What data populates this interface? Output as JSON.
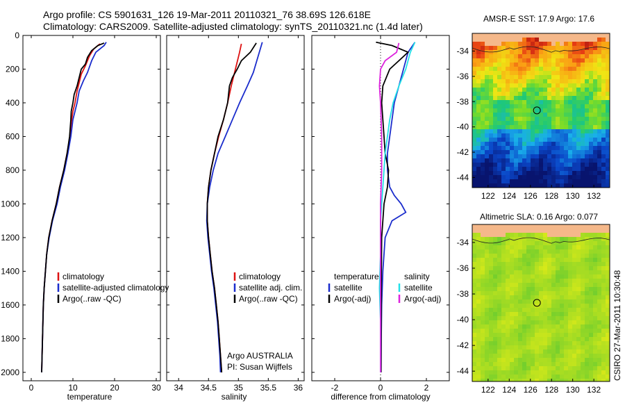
{
  "header": {
    "line1": "Argo profile: CS 5901631_126 19-Mar-2011 20110321_76 38.69S 126.618E",
    "line2": "Climatology: CARS2009. Satellite-adjusted climatology: synTS_20110321.nc (1.4d later)"
  },
  "credit": "CSIRO 27-Mar-2011 10:30:48",
  "colors": {
    "climatology": "#dd1111",
    "satellite": "#1a2ccc",
    "argo": "#000000",
    "sal_sat": "#22e0e8",
    "sal_argo": "#dd22dd",
    "land": "#f5b88a"
  },
  "chart_data": [
    {
      "type": "line",
      "id": "temperature",
      "xlabel": "temperature",
      "ylabel": "",
      "xlim": [
        -2,
        31
      ],
      "ylim": [
        2050,
        0
      ],
      "x_ticks": [
        0,
        10,
        20,
        30
      ],
      "y_ticks": [
        0,
        200,
        400,
        600,
        800,
        1000,
        1200,
        1400,
        1600,
        1800,
        2000
      ],
      "legend": [
        "climatology",
        "satellite-adjusted climatology",
        "Argo(..raw -QC)"
      ],
      "series": [
        {
          "name": "climatology",
          "color": "#dd1111",
          "points": [
            [
              16.5,
              50
            ],
            [
              15,
              80
            ],
            [
              14,
              120
            ],
            [
              13,
              180
            ],
            [
              12,
              230
            ],
            [
              11.5,
              280
            ],
            [
              11,
              330
            ],
            [
              10.5,
              400
            ],
            [
              10,
              450
            ],
            [
              9.7,
              500
            ],
            [
              9.3,
              600
            ],
            [
              8.6,
              700
            ],
            [
              7.8,
              800
            ],
            [
              6.8,
              900
            ],
            [
              6,
              1000
            ],
            [
              5,
              1100
            ],
            [
              4.2,
              1200
            ],
            [
              3.7,
              1300
            ],
            [
              3.4,
              1400
            ],
            [
              3.1,
              1500
            ],
            [
              2.9,
              1600
            ],
            [
              2.8,
              1700
            ],
            [
              2.7,
              1800
            ],
            [
              2.6,
              1900
            ],
            [
              2.5,
              2000
            ]
          ]
        },
        {
          "name": "satellite-adjusted climatology",
          "color": "#1a2ccc",
          "points": [
            [
              18,
              40
            ],
            [
              17.5,
              60
            ],
            [
              15.5,
              100
            ],
            [
              14.5,
              150
            ],
            [
              13.5,
              220
            ],
            [
              12.5,
              270
            ],
            [
              11.5,
              330
            ],
            [
              11,
              400
            ],
            [
              10.5,
              450
            ],
            [
              10,
              500
            ],
            [
              9.5,
              600
            ],
            [
              8.8,
              700
            ],
            [
              8,
              800
            ],
            [
              7,
              900
            ],
            [
              6.2,
              1000
            ],
            [
              5.1,
              1100
            ],
            [
              4.3,
              1200
            ],
            [
              3.7,
              1300
            ],
            [
              3.4,
              1400
            ],
            [
              3.1,
              1500
            ],
            [
              2.9,
              1600
            ],
            [
              2.8,
              1700
            ],
            [
              2.7,
              1800
            ],
            [
              2.6,
              1900
            ],
            [
              2.5,
              2000
            ]
          ]
        },
        {
          "name": "Argo(..raw -QC)",
          "color": "#000000",
          "points": [
            [
              17.5,
              45
            ],
            [
              16,
              60
            ],
            [
              14.5,
              90
            ],
            [
              13.5,
              130
            ],
            [
              13,
              170
            ],
            [
              12,
              200
            ],
            [
              11.5,
              250
            ],
            [
              11,
              300
            ],
            [
              10.3,
              350
            ],
            [
              10,
              400
            ],
            [
              9.6,
              450
            ],
            [
              9.5,
              500
            ],
            [
              9.2,
              600
            ],
            [
              8.6,
              700
            ],
            [
              7.8,
              800
            ],
            [
              6.8,
              900
            ],
            [
              6,
              1000
            ],
            [
              5,
              1100
            ],
            [
              4.2,
              1200
            ],
            [
              3.7,
              1300
            ],
            [
              3.4,
              1400
            ],
            [
              3.1,
              1500
            ],
            [
              2.9,
              1600
            ],
            [
              2.8,
              1700
            ],
            [
              2.7,
              1800
            ],
            [
              2.6,
              1900
            ],
            [
              2.5,
              2000
            ]
          ]
        }
      ]
    },
    {
      "type": "line",
      "id": "salinity",
      "xlabel": "salinity",
      "xlim": [
        33.8,
        36.1
      ],
      "ylim": [
        2050,
        0
      ],
      "x_ticks": [
        34,
        34.5,
        35,
        35.5,
        36
      ],
      "legend": [
        "climatology",
        "satellite adj. clim.",
        "Argo(..raw -QC)"
      ],
      "annotation": [
        "Argo AUSTRALIA",
        "PI: Susan Wijffels"
      ],
      "series": [
        {
          "name": "climatology",
          "color": "#dd1111",
          "points": [
            [
              35.05,
              50
            ],
            [
              35.02,
              100
            ],
            [
              34.95,
              200
            ],
            [
              34.88,
              300
            ],
            [
              34.82,
              400
            ],
            [
              34.75,
              500
            ],
            [
              34.67,
              600
            ],
            [
              34.6,
              700
            ],
            [
              34.54,
              800
            ],
            [
              34.5,
              900
            ],
            [
              34.48,
              1000
            ],
            [
              34.48,
              1100
            ],
            [
              34.5,
              1200
            ],
            [
              34.53,
              1300
            ],
            [
              34.56,
              1400
            ],
            [
              34.6,
              1500
            ],
            [
              34.63,
              1600
            ],
            [
              34.66,
              1700
            ],
            [
              34.68,
              1800
            ],
            [
              34.7,
              1900
            ],
            [
              34.72,
              2000
            ]
          ]
        },
        {
          "name": "satellite adj. clim.",
          "color": "#1a2ccc",
          "points": [
            [
              35.4,
              40
            ],
            [
              35.35,
              100
            ],
            [
              35.3,
              160
            ],
            [
              35.25,
              220
            ],
            [
              35.15,
              300
            ],
            [
              35.02,
              400
            ],
            [
              34.9,
              500
            ],
            [
              34.78,
              600
            ],
            [
              34.66,
              700
            ],
            [
              34.58,
              800
            ],
            [
              34.52,
              900
            ],
            [
              34.48,
              1000
            ],
            [
              34.47,
              1100
            ],
            [
              34.49,
              1200
            ],
            [
              34.52,
              1300
            ],
            [
              34.55,
              1400
            ],
            [
              34.59,
              1500
            ],
            [
              34.62,
              1600
            ],
            [
              34.65,
              1700
            ],
            [
              34.67,
              1800
            ],
            [
              34.69,
              1900
            ],
            [
              34.7,
              2000
            ]
          ]
        },
        {
          "name": "Argo(..raw -QC)",
          "color": "#000000",
          "points": [
            [
              35.3,
              45
            ],
            [
              35.2,
              100
            ],
            [
              35.05,
              150
            ],
            [
              34.98,
              200
            ],
            [
              34.9,
              250
            ],
            [
              34.85,
              300
            ],
            [
              34.82,
              400
            ],
            [
              34.75,
              500
            ],
            [
              34.66,
              600
            ],
            [
              34.6,
              700
            ],
            [
              34.54,
              800
            ],
            [
              34.5,
              900
            ],
            [
              34.48,
              1000
            ],
            [
              34.48,
              1100
            ],
            [
              34.5,
              1200
            ],
            [
              34.53,
              1300
            ],
            [
              34.56,
              1400
            ],
            [
              34.6,
              1500
            ],
            [
              34.63,
              1600
            ],
            [
              34.66,
              1700
            ],
            [
              34.68,
              1800
            ],
            [
              34.7,
              1900
            ],
            [
              34.72,
              2000
            ]
          ]
        }
      ]
    },
    {
      "type": "line",
      "id": "difference",
      "xlabel": "difference from climatology",
      "xlim": [
        -3,
        3
      ],
      "ylim": [
        2050,
        0
      ],
      "x_ticks": [
        -2,
        0,
        2
      ],
      "legend_left": {
        "title": "temperature",
        "items": [
          "satellite",
          "Argo(-adj)"
        ]
      },
      "legend_right": {
        "title": "salinity",
        "items": [
          "satellite",
          "Argo(-adj)"
        ]
      },
      "series": [
        {
          "name": "temperature satellite",
          "color": "#1a2ccc",
          "points": [
            [
              1.5,
              40
            ],
            [
              1.2,
              100
            ],
            [
              1,
              200
            ],
            [
              0.8,
              300
            ],
            [
              0.6,
              400
            ],
            [
              0.5,
              500
            ],
            [
              0.4,
              600
            ],
            [
              0.3,
              700
            ],
            [
              0.3,
              800
            ],
            [
              0.4,
              900
            ],
            [
              0.6,
              950
            ],
            [
              0.9,
              1000
            ],
            [
              1.1,
              1050
            ],
            [
              0.5,
              1100
            ],
            [
              0.2,
              1200
            ],
            [
              0.1,
              1400
            ],
            [
              0.05,
              1600
            ],
            [
              0.03,
              1800
            ],
            [
              0.02,
              2000
            ]
          ]
        },
        {
          "name": "temperature Argo(-adj)",
          "color": "#000000",
          "points": [
            [
              -0.2,
              40
            ],
            [
              0.5,
              60
            ],
            [
              1.2,
              100
            ],
            [
              0.8,
              150
            ],
            [
              0.4,
              200
            ],
            [
              0.1,
              300
            ],
            [
              0.05,
              400
            ],
            [
              0.1,
              500
            ],
            [
              0.15,
              600
            ],
            [
              0.2,
              700
            ],
            [
              0.35,
              800
            ],
            [
              0.3,
              900
            ],
            [
              0.15,
              1000
            ],
            [
              0.05,
              1200
            ],
            [
              0.03,
              1500
            ],
            [
              0.02,
              2000
            ]
          ]
        },
        {
          "name": "salinity satellite",
          "color": "#22e0e8",
          "points": [
            [
              1.5,
              40
            ],
            [
              1.3,
              100
            ],
            [
              1.1,
              200
            ],
            [
              0.8,
              300
            ],
            [
              0.55,
              400
            ],
            [
              0.4,
              500
            ],
            [
              0.2,
              700
            ],
            [
              0.1,
              900
            ],
            [
              0,
              1100
            ],
            [
              0,
              1300
            ],
            [
              -0.05,
              1500
            ],
            [
              0,
              1700
            ],
            [
              0,
              2000
            ]
          ]
        },
        {
          "name": "salinity Argo(-adj)",
          "color": "#dd22dd",
          "points": [
            [
              0.8,
              45
            ],
            [
              0.7,
              100
            ],
            [
              0.2,
              150
            ],
            [
              0,
              200
            ],
            [
              -0.05,
              300
            ],
            [
              0,
              400
            ],
            [
              0.05,
              600
            ],
            [
              0.05,
              800
            ],
            [
              0,
              1000
            ],
            [
              0,
              1200
            ],
            [
              0,
              1500
            ],
            [
              0,
              2000
            ]
          ]
        }
      ]
    }
  ],
  "maps": [
    {
      "title": "AMSR-E SST: 17.9 Argo: 17.6",
      "type": "sst",
      "lon_ticks": [
        122,
        124,
        126,
        128,
        130,
        132
      ],
      "lat_ticks": [
        -34,
        -36,
        -38,
        -40,
        -42,
        -44
      ],
      "marker": {
        "lon": 126.618,
        "lat": -38.69
      }
    },
    {
      "title": "Altimetric SLA: 0.16 Argo: 0.077",
      "type": "sla",
      "lon_ticks": [
        122,
        124,
        126,
        128,
        130,
        132
      ],
      "lat_ticks": [
        -34,
        -36,
        -38,
        -40,
        -42,
        -44
      ],
      "marker": {
        "lon": 126.618,
        "lat": -38.69
      }
    }
  ]
}
